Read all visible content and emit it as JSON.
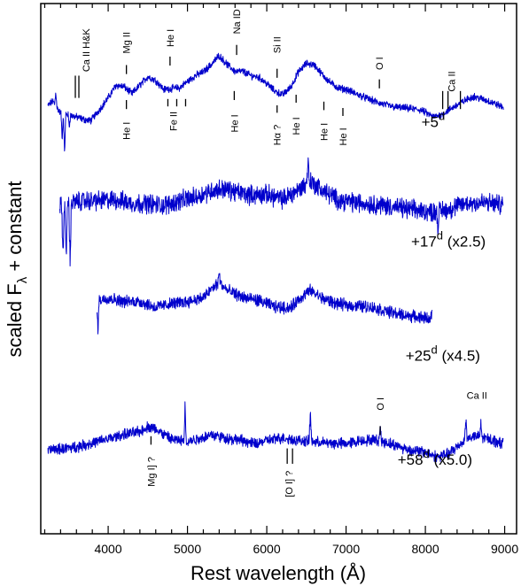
{
  "chart_data": {
    "type": "line",
    "xlabel": "Rest wavelength (Å)",
    "ylabel_main": "scaled F",
    "ylabel_sub": "λ",
    "ylabel_tail": " + constant",
    "xlim": [
      3150,
      9150
    ],
    "ylim": [
      0,
      100
    ],
    "xticks": [
      4000,
      5000,
      6000,
      7000,
      8000,
      9000
    ],
    "xtick_labels": [
      "4000",
      "5000",
      "6000",
      "7000",
      "8000",
      "9000"
    ],
    "line_color": "#0000cc",
    "series": [
      {
        "epoch_main": "+5",
        "epoch_sup": "d",
        "epoch_scale": "",
        "label_pos": [
          7950,
          76.7
        ],
        "range": [
          3240,
          8990
        ],
        "noise": 0.6,
        "spikes": [
          [
            3340,
            83.3,
            0.9
          ],
          [
            3420,
            74.4,
            0.8
          ],
          [
            3450,
            71.9,
            1.0
          ],
          [
            3510,
            76.8,
            0.8
          ]
        ],
        "profile": [
          [
            3240,
            80.7
          ],
          [
            3300,
            81.6
          ],
          [
            3400,
            79.3
          ],
          [
            3500,
            79.0
          ],
          [
            3600,
            78.6
          ],
          [
            3700,
            78.1
          ],
          [
            3780,
            77.9
          ],
          [
            3900,
            80.2
          ],
          [
            4000,
            82.2
          ],
          [
            4100,
            84.6
          ],
          [
            4200,
            84.3
          ],
          [
            4300,
            83.0
          ],
          [
            4400,
            84.6
          ],
          [
            4500,
            86.2
          ],
          [
            4600,
            85.5
          ],
          [
            4700,
            83.8
          ],
          [
            4800,
            84.0
          ],
          [
            4900,
            84.1
          ],
          [
            5000,
            85.3
          ],
          [
            5100,
            86.4
          ],
          [
            5200,
            87.1
          ],
          [
            5300,
            88.5
          ],
          [
            5400,
            90.2
          ],
          [
            5500,
            88.5
          ],
          [
            5600,
            87.2
          ],
          [
            5700,
            87.2
          ],
          [
            5800,
            86.4
          ],
          [
            5900,
            86.1
          ],
          [
            6000,
            84.9
          ],
          [
            6100,
            83.5
          ],
          [
            6200,
            82.8
          ],
          [
            6300,
            84.2
          ],
          [
            6400,
            87.1
          ],
          [
            6500,
            88.7
          ],
          [
            6600,
            88.4
          ],
          [
            6700,
            86.6
          ],
          [
            6800,
            85.1
          ],
          [
            6900,
            84.1
          ],
          [
            7000,
            83.8
          ],
          [
            7200,
            82.5
          ],
          [
            7400,
            81.3
          ],
          [
            7600,
            80.5
          ],
          [
            7800,
            80.2
          ],
          [
            7950,
            79.9
          ],
          [
            8100,
            78.6
          ],
          [
            8200,
            79.0
          ],
          [
            8400,
            80.9
          ],
          [
            8600,
            82.5
          ],
          [
            8800,
            81.6
          ],
          [
            8990,
            80.4
          ]
        ]
      },
      {
        "epoch_main": "+17",
        "epoch_sup": "d",
        "epoch_scale": "(x2.5)",
        "label_pos": [
          7820,
          54.2
        ],
        "range": [
          3390,
          8980
        ],
        "noise": 1.6,
        "spikes": [
          [
            3430,
            52.4,
            1.0
          ],
          [
            3470,
            51.1,
            0.9
          ],
          [
            3520,
            50.2,
            0.8
          ],
          [
            6520,
            70.5,
            1.2
          ],
          [
            8160,
            57.5,
            1.0
          ]
        ],
        "profile": [
          [
            3390,
            61.6
          ],
          [
            3500,
            62.3
          ],
          [
            3700,
            62.8
          ],
          [
            3900,
            62.8
          ],
          [
            4100,
            63.0
          ],
          [
            4300,
            62.3
          ],
          [
            4500,
            62.3
          ],
          [
            4700,
            61.9
          ],
          [
            4900,
            62.8
          ],
          [
            5100,
            63.5
          ],
          [
            5300,
            64.7
          ],
          [
            5450,
            65.1
          ],
          [
            5600,
            64.5
          ],
          [
            5800,
            63.9
          ],
          [
            6000,
            64.0
          ],
          [
            6200,
            63.1
          ],
          [
            6400,
            64.9
          ],
          [
            6550,
            66.5
          ],
          [
            6700,
            64.8
          ],
          [
            6900,
            63.0
          ],
          [
            7100,
            62.5
          ],
          [
            7300,
            62.2
          ],
          [
            7500,
            61.9
          ],
          [
            7700,
            61.4
          ],
          [
            7900,
            61.0
          ],
          [
            8100,
            60.7
          ],
          [
            8300,
            61.2
          ],
          [
            8500,
            62.3
          ],
          [
            8700,
            62.5
          ],
          [
            8980,
            62.1
          ]
        ]
      },
      {
        "epoch_main": "+25",
        "epoch_sup": "d",
        "epoch_scale": "(x4.5)",
        "label_pos": [
          7750,
          32.6
        ],
        "range": [
          3860,
          8090
        ],
        "noise": 1.0,
        "spikes": [
          [
            3870,
            38.3,
            1.0
          ],
          [
            5400,
            49.6,
            0.8
          ],
          [
            8085,
            42.0,
            0.8
          ]
        ],
        "profile": [
          [
            3860,
            44.0
          ],
          [
            4000,
            44.5
          ],
          [
            4200,
            43.8
          ],
          [
            4400,
            43.8
          ],
          [
            4600,
            42.7
          ],
          [
            4800,
            43.4
          ],
          [
            5000,
            43.8
          ],
          [
            5200,
            44.5
          ],
          [
            5300,
            46.1
          ],
          [
            5400,
            47.4
          ],
          [
            5500,
            45.9
          ],
          [
            5700,
            44.6
          ],
          [
            5900,
            44.0
          ],
          [
            6100,
            42.8
          ],
          [
            6300,
            42.6
          ],
          [
            6400,
            44.2
          ],
          [
            6550,
            45.9
          ],
          [
            6700,
            44.4
          ],
          [
            6900,
            43.3
          ],
          [
            7100,
            43.0
          ],
          [
            7300,
            42.8
          ],
          [
            7500,
            42.0
          ],
          [
            7700,
            41.3
          ],
          [
            7900,
            40.9
          ],
          [
            8090,
            40.6
          ]
        ]
      },
      {
        "epoch_main": "+58",
        "epoch_sup": "d",
        "epoch_scale": "(x5.0)",
        "label_pos": [
          7650,
          13.0
        ],
        "range": [
          3240,
          8980
        ],
        "noise": 0.9,
        "spikes": [
          [
            4970,
            24.5,
            0.8
          ],
          [
            6550,
            23.2,
            1.0
          ],
          [
            7430,
            20.5,
            0.7
          ],
          [
            8510,
            21.9,
            1.1
          ],
          [
            8700,
            20.9,
            0.9
          ]
        ],
        "profile": [
          [
            3240,
            15.8
          ],
          [
            3400,
            16.0
          ],
          [
            3600,
            16.4
          ],
          [
            3800,
            17.1
          ],
          [
            4000,
            17.9
          ],
          [
            4200,
            18.7
          ],
          [
            4400,
            19.3
          ],
          [
            4500,
            20.2
          ],
          [
            4600,
            19.8
          ],
          [
            4700,
            18.7
          ],
          [
            4800,
            17.8
          ],
          [
            5000,
            17.4
          ],
          [
            5200,
            18.2
          ],
          [
            5300,
            18.7
          ],
          [
            5500,
            18.0
          ],
          [
            5700,
            17.6
          ],
          [
            5850,
            16.9
          ],
          [
            6000,
            17.6
          ],
          [
            6200,
            18.1
          ],
          [
            6400,
            17.6
          ],
          [
            6600,
            17.3
          ],
          [
            6800,
            17.1
          ],
          [
            7000,
            17.0
          ],
          [
            7200,
            17.6
          ],
          [
            7400,
            17.7
          ],
          [
            7600,
            16.8
          ],
          [
            7800,
            15.8
          ],
          [
            8000,
            15.4
          ],
          [
            8150,
            14.5
          ],
          [
            8300,
            15.1
          ],
          [
            8500,
            17.7
          ],
          [
            8600,
            18.4
          ],
          [
            8800,
            17.9
          ],
          [
            8980,
            17.0
          ]
        ]
      }
    ],
    "line_ids": [
      {
        "text": "Ca II H&K",
        "x": 3720,
        "y1": 82.2,
        "y2": 86.4,
        "y_text": 91.2,
        "text_pos": "above",
        "ticks": [
          -12,
          -8
        ]
      },
      {
        "text": "Mg II",
        "x": 4230,
        "y1": 86.7,
        "y2": 88.4,
        "y_text": 92.6,
        "text_pos": "above",
        "ticks": [
          0
        ]
      },
      {
        "text": "He I",
        "x": 4780,
        "y1": 88.3,
        "y2": 90.0,
        "y_text": 93.5,
        "text_pos": "above",
        "ticks": [
          0
        ]
      },
      {
        "text": "Na ID",
        "x": 5620,
        "y1": 90.3,
        "y2": 92.2,
        "y_text": 96.6,
        "text_pos": "above",
        "ticks": [
          0
        ]
      },
      {
        "text": "Si II",
        "x": 6130,
        "y1": 86.0,
        "y2": 87.7,
        "y_text": 92.2,
        "text_pos": "above",
        "ticks": [
          0
        ]
      },
      {
        "text": "O I",
        "x": 7420,
        "y1": 84.0,
        "y2": 85.7,
        "y_text": 88.7,
        "text_pos": "above",
        "ticks": [
          0
        ]
      },
      {
        "text": "Ca II",
        "x": 8330,
        "y1": 80.1,
        "y2": 83.5,
        "y_text": 85.3,
        "text_pos": "above",
        "ticks": [
          -10,
          -4,
          10
        ]
      },
      {
        "text": "He I",
        "x": 4230,
        "y1": 80.1,
        "y2": 81.8,
        "y_text": 76.0,
        "text_pos": "below",
        "ticks": [
          0
        ]
      },
      {
        "text": "Fe II",
        "x": 4820,
        "y1": 80.6,
        "y2": 82.0,
        "y_text": 77.8,
        "text_pos": "below",
        "ticks": [
          -6,
          4,
          14
        ]
      },
      {
        "text": "He I",
        "x": 5590,
        "y1": 81.8,
        "y2": 83.5,
        "y_text": 77.4,
        "text_pos": "below",
        "ticks": [
          0
        ]
      },
      {
        "text": "Hα ?",
        "x": 6130,
        "y1": 79.4,
        "y2": 80.8,
        "y_text": 75.2,
        "text_pos": "below",
        "ticks": [
          0
        ]
      },
      {
        "text": "He I",
        "x": 6370,
        "y1": 81.3,
        "y2": 82.8,
        "y_text": 76.9,
        "text_pos": "below",
        "ticks": [
          0
        ]
      },
      {
        "text": "He I",
        "x": 6720,
        "y1": 79.9,
        "y2": 81.5,
        "y_text": 75.8,
        "text_pos": "below",
        "ticks": [
          0
        ]
      },
      {
        "text": "He I",
        "x": 6960,
        "y1": 78.8,
        "y2": 80.3,
        "y_text": 74.9,
        "text_pos": "below",
        "ticks": [
          0
        ]
      },
      {
        "text": "Mg I] ?",
        "x": 4540,
        "y1": 16.8,
        "y2": 18.4,
        "y_text": 11.7,
        "text_pos": "below",
        "ticks": [
          0
        ]
      },
      {
        "text": "[O I] ?",
        "x": 6280,
        "y1": 13.2,
        "y2": 16.1,
        "y_text": 9.4,
        "text_pos": "below",
        "ticks": [
          -2,
          4
        ]
      },
      {
        "text": "O I",
        "x": 7430,
        "y1": 18.6,
        "y2": 20.3,
        "y_text": 24.5,
        "text_pos": "above",
        "ticks": [
          0
        ]
      },
      {
        "text": "Ca II",
        "x": 8650,
        "y1": 0,
        "y2": 0,
        "y_text": 25.5,
        "text_pos": "label-only",
        "ticks": []
      }
    ]
  }
}
